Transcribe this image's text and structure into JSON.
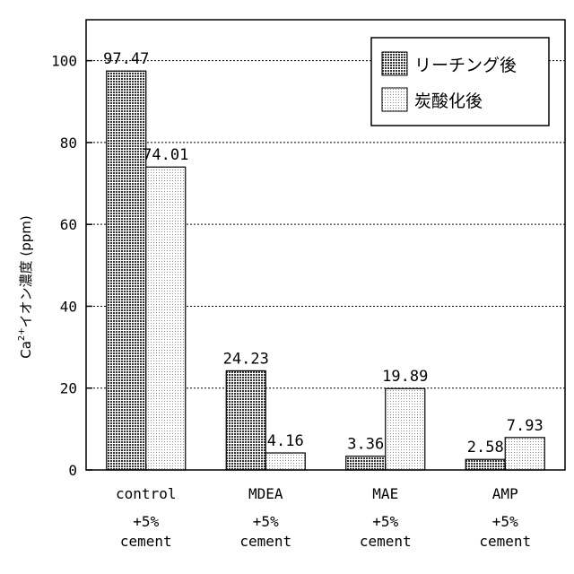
{
  "chart_data": {
    "type": "bar",
    "categories": [
      "control",
      "MDEA",
      "MAE",
      "AMP"
    ],
    "category_sublabels": [
      [
        "+5%",
        "cement"
      ],
      [
        "+5%",
        "cement"
      ],
      [
        "+5%",
        "cement"
      ],
      [
        "+5%",
        "cement"
      ]
    ],
    "series": [
      {
        "name": "リーチング後",
        "values": [
          97.47,
          24.23,
          3.36,
          2.58
        ],
        "labels": [
          "97.47",
          "24.23",
          "3.36",
          "2.58"
        ],
        "pattern": "dense-dots"
      },
      {
        "name": "炭酸化後",
        "values": [
          74.01,
          4.16,
          19.89,
          7.93
        ],
        "labels": [
          "74.01",
          "4.16",
          "19.89",
          "7.93"
        ],
        "pattern": "light-dots"
      }
    ],
    "ylabel": {
      "prefix": "Ca",
      "superscript": "2+",
      "suffix": "イオン濃度 (ppm)"
    },
    "y_ticks": [
      0,
      20,
      40,
      60,
      80,
      100
    ],
    "ylim": [
      0,
      110
    ],
    "grid": "dotted horizontal at major ticks",
    "legend_position": "top-right"
  }
}
